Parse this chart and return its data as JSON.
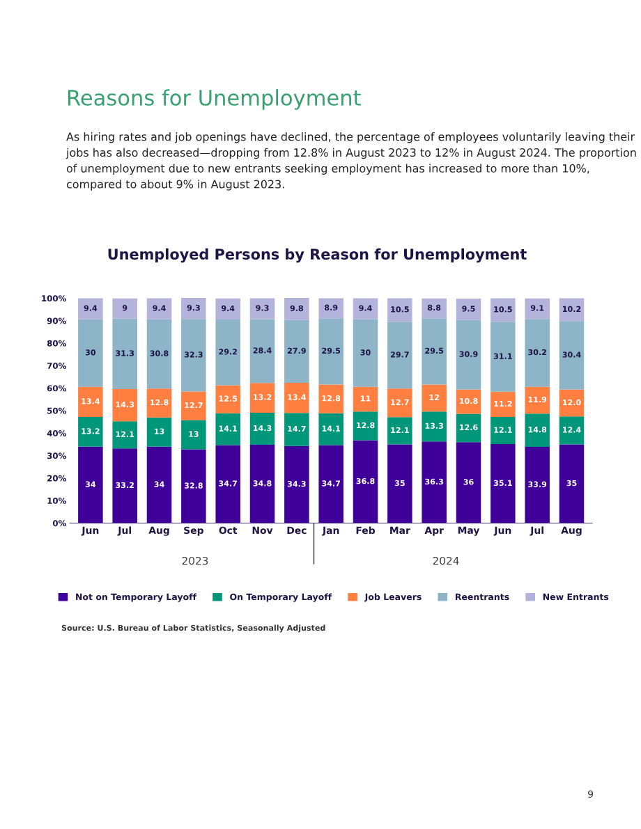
{
  "chart_data": {
    "type": "bar",
    "stacked": true,
    "title": "Reasons for Unemployment",
    "subtitle": "As hiring rates and job openings have declined, the percentage of employees voluntarily leaving their jobs has also decreased—dropping from 12.8% in August 2023 to 12% in August 2024. The proportion of unemployment due to new entrants seeking employment has increased to more than 10%, compared to about 9% in August 2023.",
    "annotations": [
      "Unemployed Persons by Reason for Unemployment",
      "2023",
      "2024",
      "Source: U.S. Bureau of Labor Statistics, Seasonally Adjusted",
      "9"
    ],
    "categories": [
      "Jun",
      "Jul",
      "Aug",
      "Sep",
      "Oct",
      "Nov",
      "Dec",
      "Jan",
      "Feb",
      "Mar",
      "Apr",
      "May",
      "Jun",
      "Jul",
      "Aug"
    ],
    "ylim": [
      0,
      101
    ],
    "yticks": [
      {
        "value": 0,
        "label": "0%"
      },
      {
        "value": 10,
        "label": "10%"
      },
      {
        "value": 20,
        "label": "20%"
      },
      {
        "value": 30,
        "label": "30%"
      },
      {
        "value": 40,
        "label": "40%"
      },
      {
        "value": 50,
        "label": "50%"
      },
      {
        "value": 60,
        "label": "60%"
      },
      {
        "value": 70,
        "label": "70%"
      },
      {
        "value": 80,
        "label": "80%"
      },
      {
        "value": 90,
        "label": "90%"
      },
      {
        "value": 100,
        "label": "100%"
      }
    ],
    "grid": false,
    "legend": "bottom",
    "series": [
      {
        "name": "Not on Temporary Layoff",
        "color": "#3f0099",
        "values": [
          34,
          33.2,
          34,
          32.8,
          34.7,
          34.8,
          34.3,
          34.7,
          36.8,
          35,
          36.3,
          36,
          35.1,
          33.9,
          35
        ],
        "value_labels": [
          "34",
          "33.2",
          "34",
          "32.8",
          "34.7",
          "34.8",
          "34.3",
          "34.7",
          "36.8",
          "35",
          "36.3",
          "36",
          "35.1",
          "33.9",
          "35"
        ]
      },
      {
        "name": "On Temporary Layoff",
        "color": "#009679",
        "values": [
          13.2,
          12.1,
          13,
          13,
          14.1,
          14.3,
          14.7,
          14.1,
          12.8,
          12.1,
          13.3,
          12.6,
          12.1,
          14.8,
          12.4
        ],
        "value_labels": [
          "13.2",
          "12.1",
          "13",
          "13",
          "14.1",
          "14.3",
          "14.7",
          "14.1",
          "12.8",
          "12.1",
          "13.3",
          "12.6",
          "12.1",
          "14.8",
          "12.4"
        ]
      },
      {
        "name": "Job Leavers",
        "color": "#ff7f41",
        "values": [
          13.4,
          14.3,
          12.8,
          12.7,
          12.5,
          13.2,
          13.4,
          12.8,
          11,
          12.7,
          12,
          10.8,
          11.2,
          11.9,
          12.0
        ],
        "value_labels": [
          "13.4",
          "14.3",
          "12.8",
          "12.7",
          "12.5",
          "13.2",
          "13.4",
          "12.8",
          "11",
          "12.7",
          "12",
          "10.8",
          "11.2",
          "11.9",
          "12.0"
        ]
      },
      {
        "name": "Reentrants",
        "color": "#8db4c7",
        "values": [
          30,
          31.3,
          30.8,
          32.3,
          29.2,
          28.4,
          27.9,
          29.5,
          30,
          29.7,
          29.5,
          30.9,
          31.1,
          30.2,
          30.4
        ],
        "value_labels": [
          "30",
          "31.3",
          "30.8",
          "32.3",
          "29.2",
          "28.4",
          "27.9",
          "29.5",
          "30",
          "29.7",
          "29.5",
          "30.9",
          "31.1",
          "30.2",
          "30.4"
        ]
      },
      {
        "name": "New Entrants",
        "color": "#b3b3dc",
        "values": [
          9.4,
          9,
          9.4,
          9.3,
          9.4,
          9.3,
          9.8,
          8.9,
          9.4,
          10.5,
          8.8,
          9.5,
          10.5,
          9.1,
          10.2
        ],
        "value_labels": [
          "9.4",
          "9",
          "9.4",
          "9.3",
          "9.4",
          "9.3",
          "9.8",
          "8.9",
          "9.4",
          "10.5",
          "8.8",
          "9.5",
          "10.5",
          "9.1",
          "10.2"
        ]
      }
    ]
  }
}
